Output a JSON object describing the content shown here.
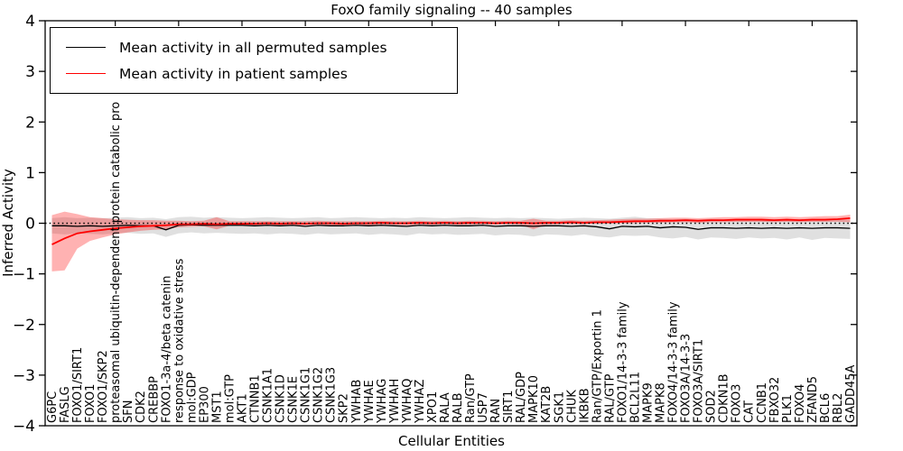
{
  "chart_data": {
    "type": "line",
    "title": "FoxO family signaling -- 40 samples",
    "xlabel": "Cellular Entities",
    "ylabel": "Inferred Activity",
    "ylim": [
      -4,
      4
    ],
    "yticks": [
      4,
      3,
      2,
      1,
      0,
      -1,
      -2,
      -3,
      -4
    ],
    "ytick_labels": [
      "4",
      "3",
      "2",
      "1",
      "0",
      "−1",
      "−2",
      "−3",
      "−4"
    ],
    "grid": false,
    "legend_position": "upper left",
    "zero_line": {
      "value": 0,
      "style": "dotted",
      "color": "#000000"
    },
    "categories": [
      "G6PC",
      "FASLG",
      "FOXO1/SIRT1",
      "FOXO1",
      "FOXO1/SKP2",
      "proteasomal ubiquitin-dependent protein catabolic pro",
      "SFN",
      "CDK2",
      "CREBBP",
      "FOXO1-3a-4/beta catenin",
      "response to oxidative stress",
      "mol:GDP",
      "EP300",
      "MST1",
      "mol:GTP",
      "AKT1",
      "CTNNB1",
      "CSNK1A1",
      "CSNK1D",
      "CSNK1E",
      "CSNK1G1",
      "CSNK1G2",
      "CSNK1G3",
      "SKP2",
      "YWHAB",
      "YWHAE",
      "YWHAG",
      "YWHAH",
      "YWHAQ",
      "YWHAZ",
      "XPO1",
      "RALA",
      "RALB",
      "Ran/GTP",
      "USP7",
      "RAN",
      "SIRT1",
      "RAL/GDP",
      "MAPK10",
      "KAT2B",
      "SGK1",
      "CHUK",
      "IKBKB",
      "Ran/GTP/Exportin 1",
      "RAL/GTP",
      "FOXO1/14-3-3 family",
      "BCL2L11",
      "MAPK9",
      "MAPK8",
      "FOXO4/14-3-3 family",
      "FOXO3A/14-3-3",
      "FOXO3A/SIRT1",
      "SOD2",
      "CDKN1B",
      "FOXO3",
      "CAT",
      "CCNB1",
      "FBXO32",
      "PLK1",
      "FOXO4",
      "ZFAND5",
      "BCL6",
      "RBL2",
      "GADD45A"
    ],
    "series": [
      {
        "name": "Mean activity in all permuted samples",
        "color": "#000000",
        "band_color": "#bbbbbb",
        "band_opacity": 0.45,
        "values": [
          -0.05,
          -0.05,
          -0.06,
          -0.05,
          -0.06,
          -0.05,
          -0.04,
          -0.05,
          -0.05,
          -0.13,
          -0.04,
          -0.03,
          -0.04,
          -0.04,
          -0.04,
          -0.04,
          -0.05,
          -0.04,
          -0.05,
          -0.04,
          -0.06,
          -0.04,
          -0.05,
          -0.05,
          -0.04,
          -0.05,
          -0.04,
          -0.05,
          -0.06,
          -0.04,
          -0.05,
          -0.04,
          -0.05,
          -0.05,
          -0.04,
          -0.06,
          -0.05,
          -0.05,
          -0.06,
          -0.05,
          -0.05,
          -0.06,
          -0.05,
          -0.07,
          -0.11,
          -0.06,
          -0.07,
          -0.06,
          -0.09,
          -0.07,
          -0.08,
          -0.12,
          -0.09,
          -0.09,
          -0.1,
          -0.09,
          -0.1,
          -0.09,
          -0.1,
          -0.09,
          -0.1,
          -0.09,
          -0.09,
          -0.1
        ],
        "band_upper": [
          0.1,
          0.12,
          0.1,
          0.11,
          0.1,
          0.11,
          0.12,
          0.1,
          0.11,
          0.08,
          0.12,
          0.13,
          0.11,
          0.12,
          0.11,
          0.1,
          0.11,
          0.12,
          0.11,
          0.1,
          0.11,
          0.12,
          0.1,
          0.11,
          0.12,
          0.11,
          0.1,
          0.11,
          0.1,
          0.12,
          0.11,
          0.1,
          0.11,
          0.12,
          0.11,
          0.1,
          0.11,
          0.1,
          0.11,
          0.1,
          0.09,
          0.1,
          0.11,
          0.1,
          0.09,
          0.11,
          0.13,
          0.1,
          0.09,
          0.08,
          0.09,
          0.07,
          0.09,
          0.08,
          0.07,
          0.08,
          0.09,
          0.08,
          0.07,
          0.08,
          0.09,
          0.07,
          0.08,
          0.07
        ],
        "band_lower": [
          -0.2,
          -0.22,
          -0.2,
          -0.21,
          -0.22,
          -0.2,
          -0.19,
          -0.21,
          -0.2,
          -0.27,
          -0.2,
          -0.18,
          -0.2,
          -0.19,
          -0.2,
          -0.21,
          -0.2,
          -0.22,
          -0.2,
          -0.21,
          -0.23,
          -0.2,
          -0.22,
          -0.21,
          -0.2,
          -0.23,
          -0.21,
          -0.22,
          -0.24,
          -0.2,
          -0.22,
          -0.21,
          -0.23,
          -0.22,
          -0.21,
          -0.24,
          -0.22,
          -0.23,
          -0.26,
          -0.22,
          -0.23,
          -0.25,
          -0.22,
          -0.26,
          -0.28,
          -0.24,
          -0.25,
          -0.24,
          -0.28,
          -0.3,
          -0.27,
          -0.32,
          -0.28,
          -0.29,
          -0.31,
          -0.28,
          -0.3,
          -0.29,
          -0.32,
          -0.28,
          -0.33,
          -0.29,
          -0.3,
          -0.31
        ]
      },
      {
        "name": "Mean activity in patient samples",
        "color": "#ff0000",
        "band_color": "#ff0000",
        "band_opacity": 0.3,
        "values": [
          -0.42,
          -0.3,
          -0.2,
          -0.16,
          -0.13,
          -0.1,
          -0.08,
          -0.06,
          -0.05,
          -0.04,
          -0.02,
          -0.02,
          -0.01,
          -0.02,
          -0.01,
          -0.01,
          -0.01,
          0.0,
          -0.01,
          0.0,
          -0.01,
          0.0,
          0.0,
          -0.01,
          0.0,
          0.0,
          0.01,
          0.0,
          0.0,
          0.01,
          0.0,
          0.01,
          0.0,
          0.01,
          0.01,
          0.0,
          0.01,
          0.01,
          0.0,
          0.01,
          0.01,
          0.02,
          0.01,
          0.02,
          0.02,
          0.03,
          0.04,
          0.04,
          0.05,
          0.05,
          0.06,
          0.05,
          0.06,
          0.06,
          0.07,
          0.07,
          0.07,
          0.06,
          0.07,
          0.06,
          0.07,
          0.07,
          0.08,
          0.1
        ],
        "band_upper": [
          0.16,
          0.23,
          0.18,
          0.12,
          0.1,
          0.08,
          0.07,
          0.06,
          0.06,
          0.05,
          0.05,
          0.04,
          0.05,
          0.12,
          0.04,
          0.04,
          0.04,
          0.04,
          0.04,
          0.04,
          0.04,
          0.05,
          0.04,
          0.04,
          0.04,
          0.04,
          0.05,
          0.04,
          0.04,
          0.05,
          0.04,
          0.05,
          0.04,
          0.05,
          0.05,
          0.04,
          0.05,
          0.05,
          0.09,
          0.05,
          0.05,
          0.06,
          0.05,
          0.06,
          0.07,
          0.08,
          0.09,
          0.09,
          0.1,
          0.11,
          0.11,
          0.1,
          0.11,
          0.12,
          0.12,
          0.13,
          0.13,
          0.12,
          0.13,
          0.12,
          0.13,
          0.14,
          0.14,
          0.17
        ],
        "band_lower": [
          -0.95,
          -0.93,
          -0.5,
          -0.35,
          -0.28,
          -0.22,
          -0.18,
          -0.15,
          -0.13,
          -0.12,
          -0.08,
          -0.07,
          -0.06,
          -0.12,
          -0.05,
          -0.05,
          -0.04,
          -0.04,
          -0.05,
          -0.04,
          -0.04,
          -0.03,
          -0.04,
          -0.04,
          -0.03,
          -0.04,
          -0.03,
          -0.03,
          -0.04,
          -0.03,
          -0.03,
          -0.02,
          -0.03,
          -0.03,
          -0.02,
          -0.03,
          -0.02,
          -0.03,
          -0.12,
          -0.03,
          -0.02,
          -0.02,
          -0.02,
          -0.01,
          -0.01,
          0.0,
          0.0,
          0.01,
          0.01,
          0.02,
          0.02,
          0.01,
          0.02,
          0.02,
          0.03,
          0.03,
          0.03,
          0.02,
          0.03,
          0.02,
          0.03,
          0.03,
          0.03,
          0.02
        ]
      }
    ]
  }
}
